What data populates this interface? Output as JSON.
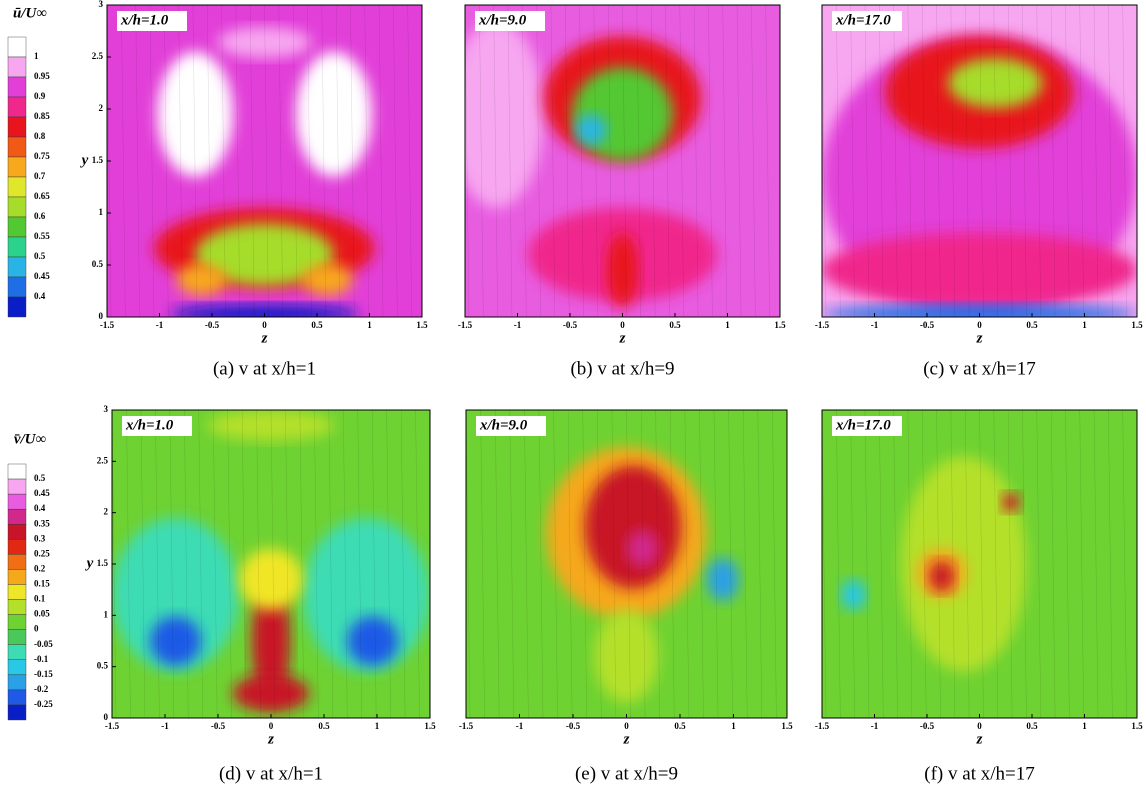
{
  "colorbars": [
    {
      "label": "ū/U∞",
      "ticks": [
        1,
        0.95,
        0.9,
        0.85,
        0.8,
        0.75,
        0.7,
        0.65,
        0.6,
        0.55,
        0.5,
        0.45,
        0.4
      ],
      "colors": [
        "#ffffff",
        "#f7a6f0",
        "#e23fd8",
        "#f0288c",
        "#e8141e",
        "#f05a14",
        "#f7a81c",
        "#e0e62a",
        "#a6dc2a",
        "#52c832",
        "#2ad28c",
        "#2ab4e6",
        "#1e6ee6",
        "#0a1ec8"
      ]
    },
    {
      "label": "v̄/U∞",
      "ticks": [
        0.5,
        0.45,
        0.4,
        0.35,
        0.3,
        0.25,
        0.2,
        0.15,
        0.1,
        0.05,
        0,
        -0.05,
        -0.1,
        -0.15,
        -0.2,
        -0.25
      ],
      "colors": [
        "#ffffff",
        "#f7a6f0",
        "#e85ce0",
        "#d2288c",
        "#c81428",
        "#e02814",
        "#f06e14",
        "#f5a81c",
        "#f0e628",
        "#b4e02a",
        "#6ed232",
        "#4ac85a",
        "#3cdcb4",
        "#28c8e6",
        "#2aa0e6",
        "#1e5ae6",
        "#0a1ec8"
      ]
    }
  ],
  "panels": [
    {
      "annotation": "x/h=1.0",
      "caption": "(a) v at x/h=1",
      "x_label": "z",
      "y_label": "y",
      "xlim": [
        -1.5,
        1.5
      ],
      "ylim": [
        0,
        3
      ],
      "xticks": [
        -1.5,
        -1,
        -0.5,
        0,
        0.5,
        1,
        1.5
      ],
      "yticks": [
        0,
        0.5,
        1,
        1.5,
        2,
        2.5,
        3
      ]
    },
    {
      "annotation": "x/h=9.0",
      "caption": "(b) v at x/h=9",
      "x_label": "z",
      "xlim": [
        -1.5,
        1.5
      ],
      "ylim": [
        0,
        3
      ],
      "xticks": [
        -1.5,
        -1,
        -0.5,
        0,
        0.5,
        1,
        1.5
      ]
    },
    {
      "annotation": "x/h=17.0",
      "caption": "(c) v at x/h=17",
      "x_label": "z",
      "xlim": [
        -1.5,
        1.5
      ],
      "ylim": [
        0,
        3
      ],
      "xticks": [
        -1.5,
        -1,
        -0.5,
        0,
        0.5,
        1,
        1.5
      ]
    },
    {
      "annotation": "x/h=1.0",
      "caption": "(d) v at x/h=1",
      "x_label": "z",
      "y_label": "y",
      "xlim": [
        -1.5,
        1.5
      ],
      "ylim": [
        0,
        3
      ],
      "xticks": [
        -1.5,
        -1,
        -0.5,
        0,
        0.5,
        1,
        1.5
      ],
      "yticks": [
        0,
        0.5,
        1,
        1.5,
        2,
        2.5,
        3
      ]
    },
    {
      "annotation": "x/h=9.0",
      "caption": "(e) v at x/h=9",
      "x_label": "z",
      "xlim": [
        -1.5,
        1.5
      ],
      "ylim": [
        0,
        3
      ],
      "xticks": [
        -1.5,
        -1,
        -0.5,
        0,
        0.5,
        1,
        1.5
      ]
    },
    {
      "annotation": "x/h=17.0",
      "caption": "(f) v at x/h=17",
      "x_label": "z",
      "xlim": [
        -1.5,
        1.5
      ],
      "ylim": [
        0,
        3
      ],
      "xticks": [
        -1.5,
        -1,
        -0.5,
        0,
        0.5,
        1,
        1.5
      ]
    }
  ]
}
